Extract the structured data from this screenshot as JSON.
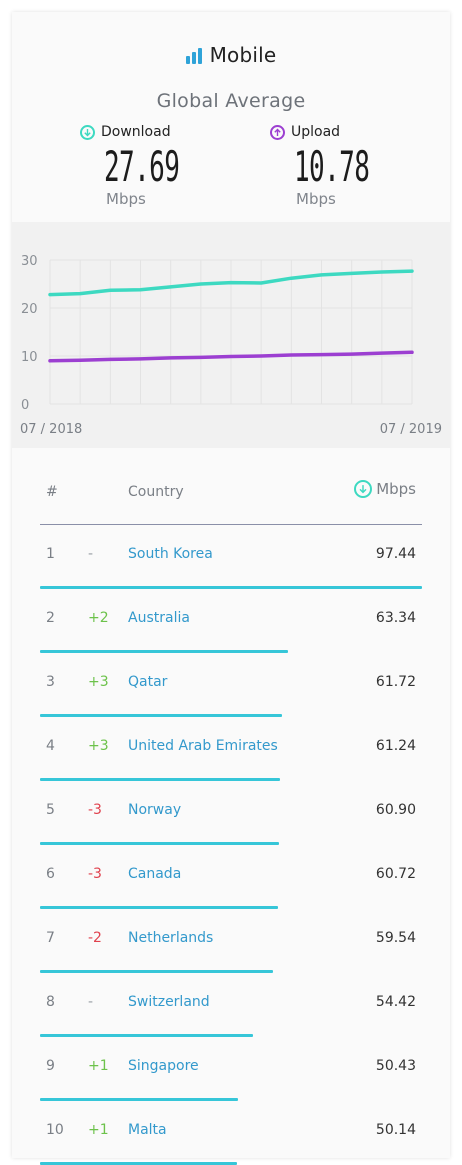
{
  "header": {
    "title": "Mobile",
    "subtitle": "Global Average",
    "download": {
      "label": "Download",
      "value": "27.69",
      "unit": "Mbps",
      "color": "#3dd9c1"
    },
    "upload": {
      "label": "Upload",
      "value": "10.78",
      "unit": "Mbps",
      "color": "#9c3fd1"
    }
  },
  "chart_data": {
    "type": "line",
    "x_start_label": "07 / 2018",
    "x_end_label": "07 / 2019",
    "ylim": [
      0,
      30
    ],
    "yticks": [
      "0",
      "10",
      "20",
      "30"
    ],
    "grid": true,
    "series": [
      {
        "name": "Download",
        "color": "#3dd9c1",
        "values": [
          22.8,
          23.0,
          23.7,
          23.8,
          24.4,
          25.0,
          25.3,
          25.2,
          26.2,
          26.9,
          27.2,
          27.5,
          27.69
        ]
      },
      {
        "name": "Upload",
        "color": "#9c3fd1",
        "values": [
          9.0,
          9.1,
          9.3,
          9.4,
          9.6,
          9.7,
          9.9,
          10.0,
          10.2,
          10.3,
          10.4,
          10.6,
          10.78
        ]
      }
    ]
  },
  "table": {
    "headers": {
      "rank": "#",
      "country": "Country",
      "mbps": "Mbps"
    },
    "max_value": 97.44,
    "rows": [
      {
        "rank": "1",
        "change": "-",
        "change_type": "none",
        "country": "South Korea",
        "value": "97.44",
        "num": 97.44
      },
      {
        "rank": "2",
        "change": "+2",
        "change_type": "up",
        "country": "Australia",
        "value": "63.34",
        "num": 63.34
      },
      {
        "rank": "3",
        "change": "+3",
        "change_type": "up",
        "country": "Qatar",
        "value": "61.72",
        "num": 61.72
      },
      {
        "rank": "4",
        "change": "+3",
        "change_type": "up",
        "country": "United Arab Emirates",
        "value": "61.24",
        "num": 61.24
      },
      {
        "rank": "5",
        "change": "-3",
        "change_type": "down",
        "country": "Norway",
        "value": "60.90",
        "num": 60.9
      },
      {
        "rank": "6",
        "change": "-3",
        "change_type": "down",
        "country": "Canada",
        "value": "60.72",
        "num": 60.72
      },
      {
        "rank": "7",
        "change": "-2",
        "change_type": "down",
        "country": "Netherlands",
        "value": "59.54",
        "num": 59.54
      },
      {
        "rank": "8",
        "change": "-",
        "change_type": "none",
        "country": "Switzerland",
        "value": "54.42",
        "num": 54.42
      },
      {
        "rank": "9",
        "change": "+1",
        "change_type": "up",
        "country": "Singapore",
        "value": "50.43",
        "num": 50.43
      },
      {
        "rank": "10",
        "change": "+1",
        "change_type": "up",
        "country": "Malta",
        "value": "50.14",
        "num": 50.14
      }
    ]
  },
  "colors": {
    "up": "#6cc24a",
    "down": "#e0424e",
    "none": "#9aa0a6",
    "bar": "#36c6d8",
    "country_link": "#3399cc"
  }
}
